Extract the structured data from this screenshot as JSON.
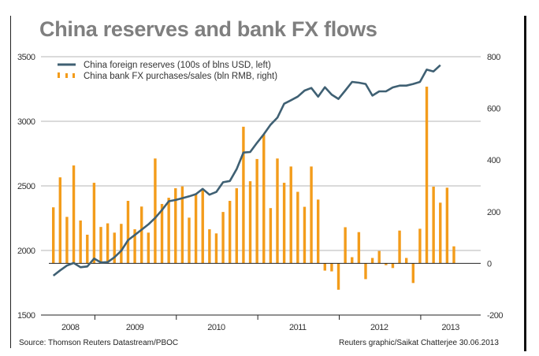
{
  "title": "China reserves and bank FX flows",
  "source": "Source: Thomson Reuters Datastream/PBOC",
  "credit": "Reuters graphic/Saikat Chatterjee 30.06.2013",
  "colors": {
    "line": "#3f6073",
    "bars": "#f39c1b",
    "grid": "#b5b5b5",
    "title": "#7f7f7f"
  },
  "chart_data": {
    "type": "bar+line",
    "title": "China reserves and bank FX flows",
    "x_note": "monthly, mid-2008 to mid-2013",
    "year_labels": [
      {
        "label": "2008",
        "at": 2.5
      },
      {
        "label": "2009",
        "at": 12
      },
      {
        "label": "2010",
        "at": 24
      },
      {
        "label": "2011",
        "at": 36
      },
      {
        "label": "2012",
        "at": 48
      },
      {
        "label": "2013",
        "at": 58.5
      }
    ],
    "year_ticks": [
      6,
      18,
      30,
      42,
      54
    ],
    "left_axis": {
      "ylim": [
        1500,
        3500
      ],
      "ticks": [
        "3500",
        "3000",
        "2500",
        "2000",
        "1500"
      ],
      "gridlines": [
        3500,
        3000,
        2500,
        2000
      ]
    },
    "right_axis": {
      "ylim": [
        -200,
        800
      ],
      "ticks": [
        "800",
        "600",
        "400",
        "200",
        "0",
        "-200"
      ]
    },
    "series": [
      {
        "name": "China foreign reserves (100s of blns USD, left)",
        "type": "line",
        "axis": "left",
        "values": [
          1805,
          1846,
          1883,
          1903,
          1870,
          1876,
          1937,
          1907,
          1910,
          1947,
          1998,
          2080,
          2120,
          2161,
          2202,
          2252,
          2313,
          2381,
          2391,
          2405,
          2419,
          2436,
          2477,
          2432,
          2453,
          2528,
          2538,
          2630,
          2758,
          2762,
          2833,
          2900,
          2974,
          3028,
          3136,
          3163,
          3191,
          3238,
          3258,
          3191,
          3264,
          3207,
          3173,
          3238,
          3305,
          3299,
          3289,
          3199,
          3232,
          3232,
          3262,
          3276,
          3276,
          3289,
          3305,
          3400,
          3386,
          3435
        ]
      },
      {
        "name": "China bank FX purchases/sales (bln RMB, right)",
        "type": "bar",
        "axis": "right",
        "values": [
          217,
          333,
          180,
          379,
          166,
          111,
          312,
          141,
          155,
          119,
          153,
          242,
          132,
          220,
          119,
          406,
          230,
          254,
          291,
          298,
          177,
          270,
          288,
          132,
          116,
          199,
          242,
          291,
          529,
          318,
          404,
          499,
          214,
          406,
          312,
          375,
          277,
          219,
          375,
          247,
          -28,
          -31,
          -102,
          140,
          24,
          121,
          -61,
          21,
          48,
          -7,
          -18,
          127,
          21,
          -76,
          134,
          684,
          297,
          235,
          293,
          66
        ]
      }
    ]
  }
}
